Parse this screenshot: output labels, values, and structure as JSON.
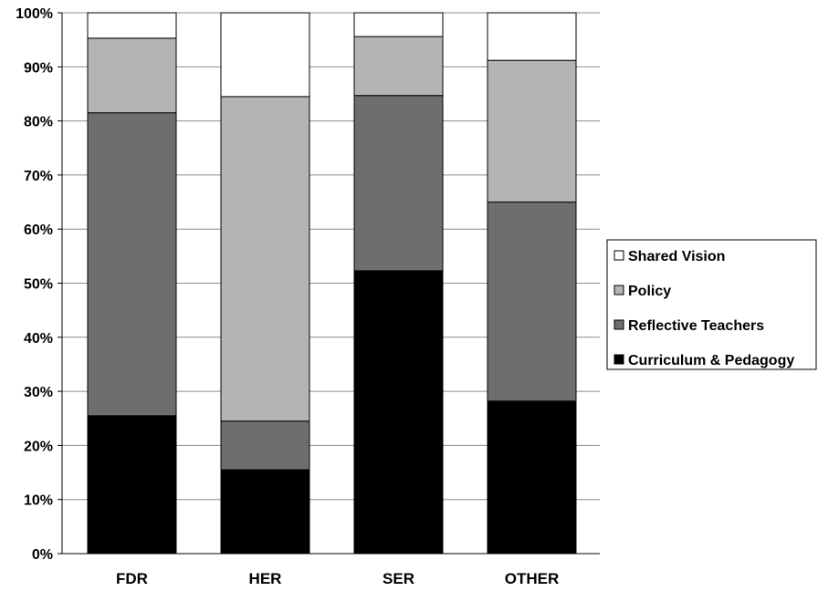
{
  "chart_data": {
    "type": "bar",
    "stacked": true,
    "percent": true,
    "categories": [
      "FDR",
      "HER",
      "SER",
      "OTHER"
    ],
    "series": [
      {
        "name": "Curriculum & Pedagogy",
        "color": "#000000",
        "values": [
          25.5,
          15.5,
          52.3,
          28.2
        ]
      },
      {
        "name": "Reflective Teachers",
        "color": "#6e6e6e",
        "values": [
          56.0,
          9.0,
          32.4,
          36.8
        ]
      },
      {
        "name": "Policy",
        "color": "#b4b4b4",
        "values": [
          13.8,
          60.0,
          10.9,
          26.2
        ]
      },
      {
        "name": "Shared Vision",
        "color": "#ffffff",
        "values": [
          4.7,
          15.5,
          4.4,
          8.8
        ]
      }
    ],
    "ylim": [
      0,
      100
    ],
    "yticks": [
      "0%",
      "10%",
      "20%",
      "30%",
      "40%",
      "50%",
      "60%",
      "70%",
      "80%",
      "90%",
      "100%"
    ],
    "grid": true,
    "legend": {
      "placement": "right",
      "order": [
        "Shared Vision",
        "Policy",
        "Reflective Teachers",
        "Curriculum & Pedagogy"
      ]
    },
    "title": "",
    "xlabel": "",
    "ylabel": ""
  }
}
